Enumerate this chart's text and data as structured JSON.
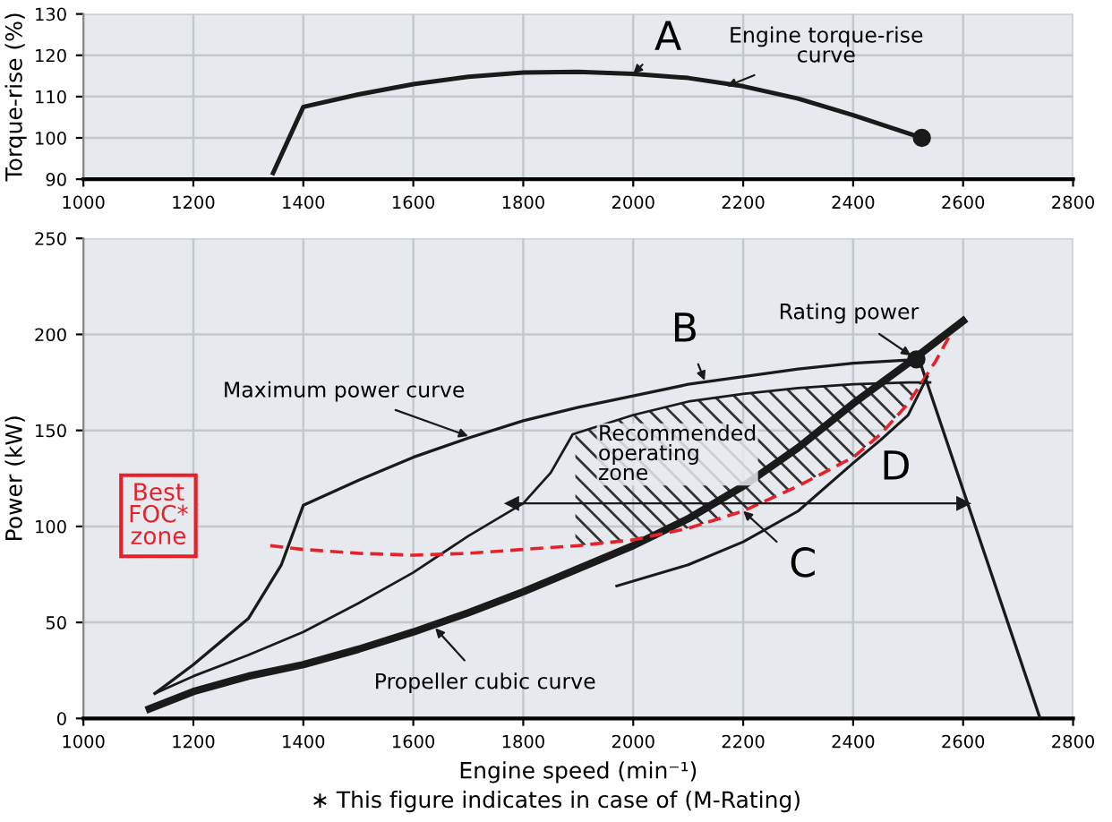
{
  "chart_data": [
    {
      "type": "line",
      "ylabel": "Torque-rise (%)",
      "xlim": [
        1000,
        2800
      ],
      "xticks": [
        1000,
        1200,
        1400,
        1600,
        1800,
        2000,
        2200,
        2400,
        2600,
        2800
      ],
      "ylim": [
        90,
        130
      ],
      "yticks": [
        90,
        100,
        110,
        120,
        130
      ],
      "grid": true,
      "series": [
        {
          "color": "#1a1a1a",
          "x": [
            1345,
            1400,
            1500,
            1600,
            1700,
            1800,
            1900,
            2000,
            2100,
            2200,
            2300,
            2400,
            2525
          ],
          "values": [
            91.5,
            107.5,
            110.5,
            113,
            114.8,
            115.8,
            116,
            115.5,
            114.5,
            112.5,
            109.5,
            105.5,
            100
          ]
        },
        {
          "type": "scatter",
          "color": "#1a1a1a",
          "x": [
            2525
          ],
          "values": [
            100
          ]
        }
      ],
      "annotations": [
        {
          "text": "A",
          "x": 2000,
          "y": 115.5
        },
        {
          "text": "Engine torque-rise\ncurve",
          "x": 2170,
          "y": 112.5
        }
      ]
    },
    {
      "type": "line",
      "xlabel": "Engine speed (min⁻¹)",
      "ylabel": "Power (kW)",
      "xlim": [
        1000,
        2800
      ],
      "xticks": [
        1000,
        1200,
        1400,
        1600,
        1800,
        2000,
        2200,
        2400,
        2600,
        2800
      ],
      "ylim": [
        0,
        250
      ],
      "yticks": [
        0,
        50,
        100,
        150,
        200,
        250
      ],
      "grid": true,
      "series": [
        {
          "color": "#1a1a1a",
          "x": [
            1130,
            1200,
            1300,
            1360,
            1400,
            1500,
            1600,
            1700,
            1800,
            1900,
            2000,
            2100,
            2200,
            2300,
            2400,
            2520,
            2740
          ],
          "values": [
            13,
            28,
            52,
            80,
            111,
            124,
            136,
            146,
            155,
            162,
            168,
            174,
            178,
            182,
            185,
            187,
            0
          ]
        },
        {
          "color": "#1a1a1a",
          "x": [
            1130,
            1200,
            1300,
            1400,
            1500,
            1600,
            1700,
            1800,
            1850,
            1890,
            2000,
            2100,
            2200,
            2300,
            2400,
            2500,
            2540
          ],
          "values": [
            13,
            22,
            33,
            45,
            60,
            76,
            95,
            112,
            128,
            148,
            158,
            165,
            169,
            172,
            174,
            175,
            175
          ]
        },
        {
          "color": "#1a1a1a",
          "x": [
            1120,
            1200,
            1300,
            1400,
            1500,
            1600,
            1700,
            1800,
            1900,
            2000,
            2100,
            2200,
            2300,
            2400,
            2500,
            2600
          ],
          "values": [
            5,
            14,
            22,
            28,
            36,
            45,
            55,
            66,
            78,
            90,
            104,
            121,
            141,
            164,
            185,
            207
          ]
        },
        {
          "name": "Best\nFOC*\nzone",
          "color": "#e8202a",
          "line_style": "dashed",
          "x": [
            1340,
            1400,
            1500,
            1600,
            1700,
            1800,
            1900,
            2000,
            2100,
            2200,
            2300,
            2400,
            2450,
            2500,
            2550,
            2575
          ],
          "values": [
            90,
            88,
            86,
            85,
            86,
            88,
            90,
            93,
            99,
            108,
            121,
            136,
            148,
            164,
            186,
            199
          ]
        },
        {
          "color": "#1a1a1a",
          "x": [
            1970,
            2100,
            2200,
            2300,
            2400,
            2450,
            2500,
            2535
          ],
          "values": [
            69,
            80,
            92,
            108,
            133,
            145,
            158,
            178
          ]
        },
        {
          "color": "#1a1a1a",
          "marker": "triangle",
          "x": [
            1780,
            2600
          ],
          "values": [
            112,
            112
          ]
        },
        {
          "type": "scatter",
          "color": "#1a1a1a",
          "x": [
            2515
          ],
          "values": [
            187
          ]
        }
      ],
      "annotations": [
        {
          "text": "B",
          "x": 2130,
          "y": 176
        },
        {
          "text": "Maximum power curve",
          "x": 1700,
          "y": 147
        },
        {
          "text": "Rating power",
          "x": 2505,
          "y": 189
        },
        "Recommended\noperating\nzone",
        {
          "text": "D",
          "x": 2500,
          "y": 112
        },
        {
          "text": "C",
          "x": 2200,
          "y": 108
        },
        {
          "text": "Propeller cubic curve",
          "x": 1640,
          "y": 47
        },
        "∗ This figure indicates in case of (M-Rating)"
      ]
    }
  ]
}
